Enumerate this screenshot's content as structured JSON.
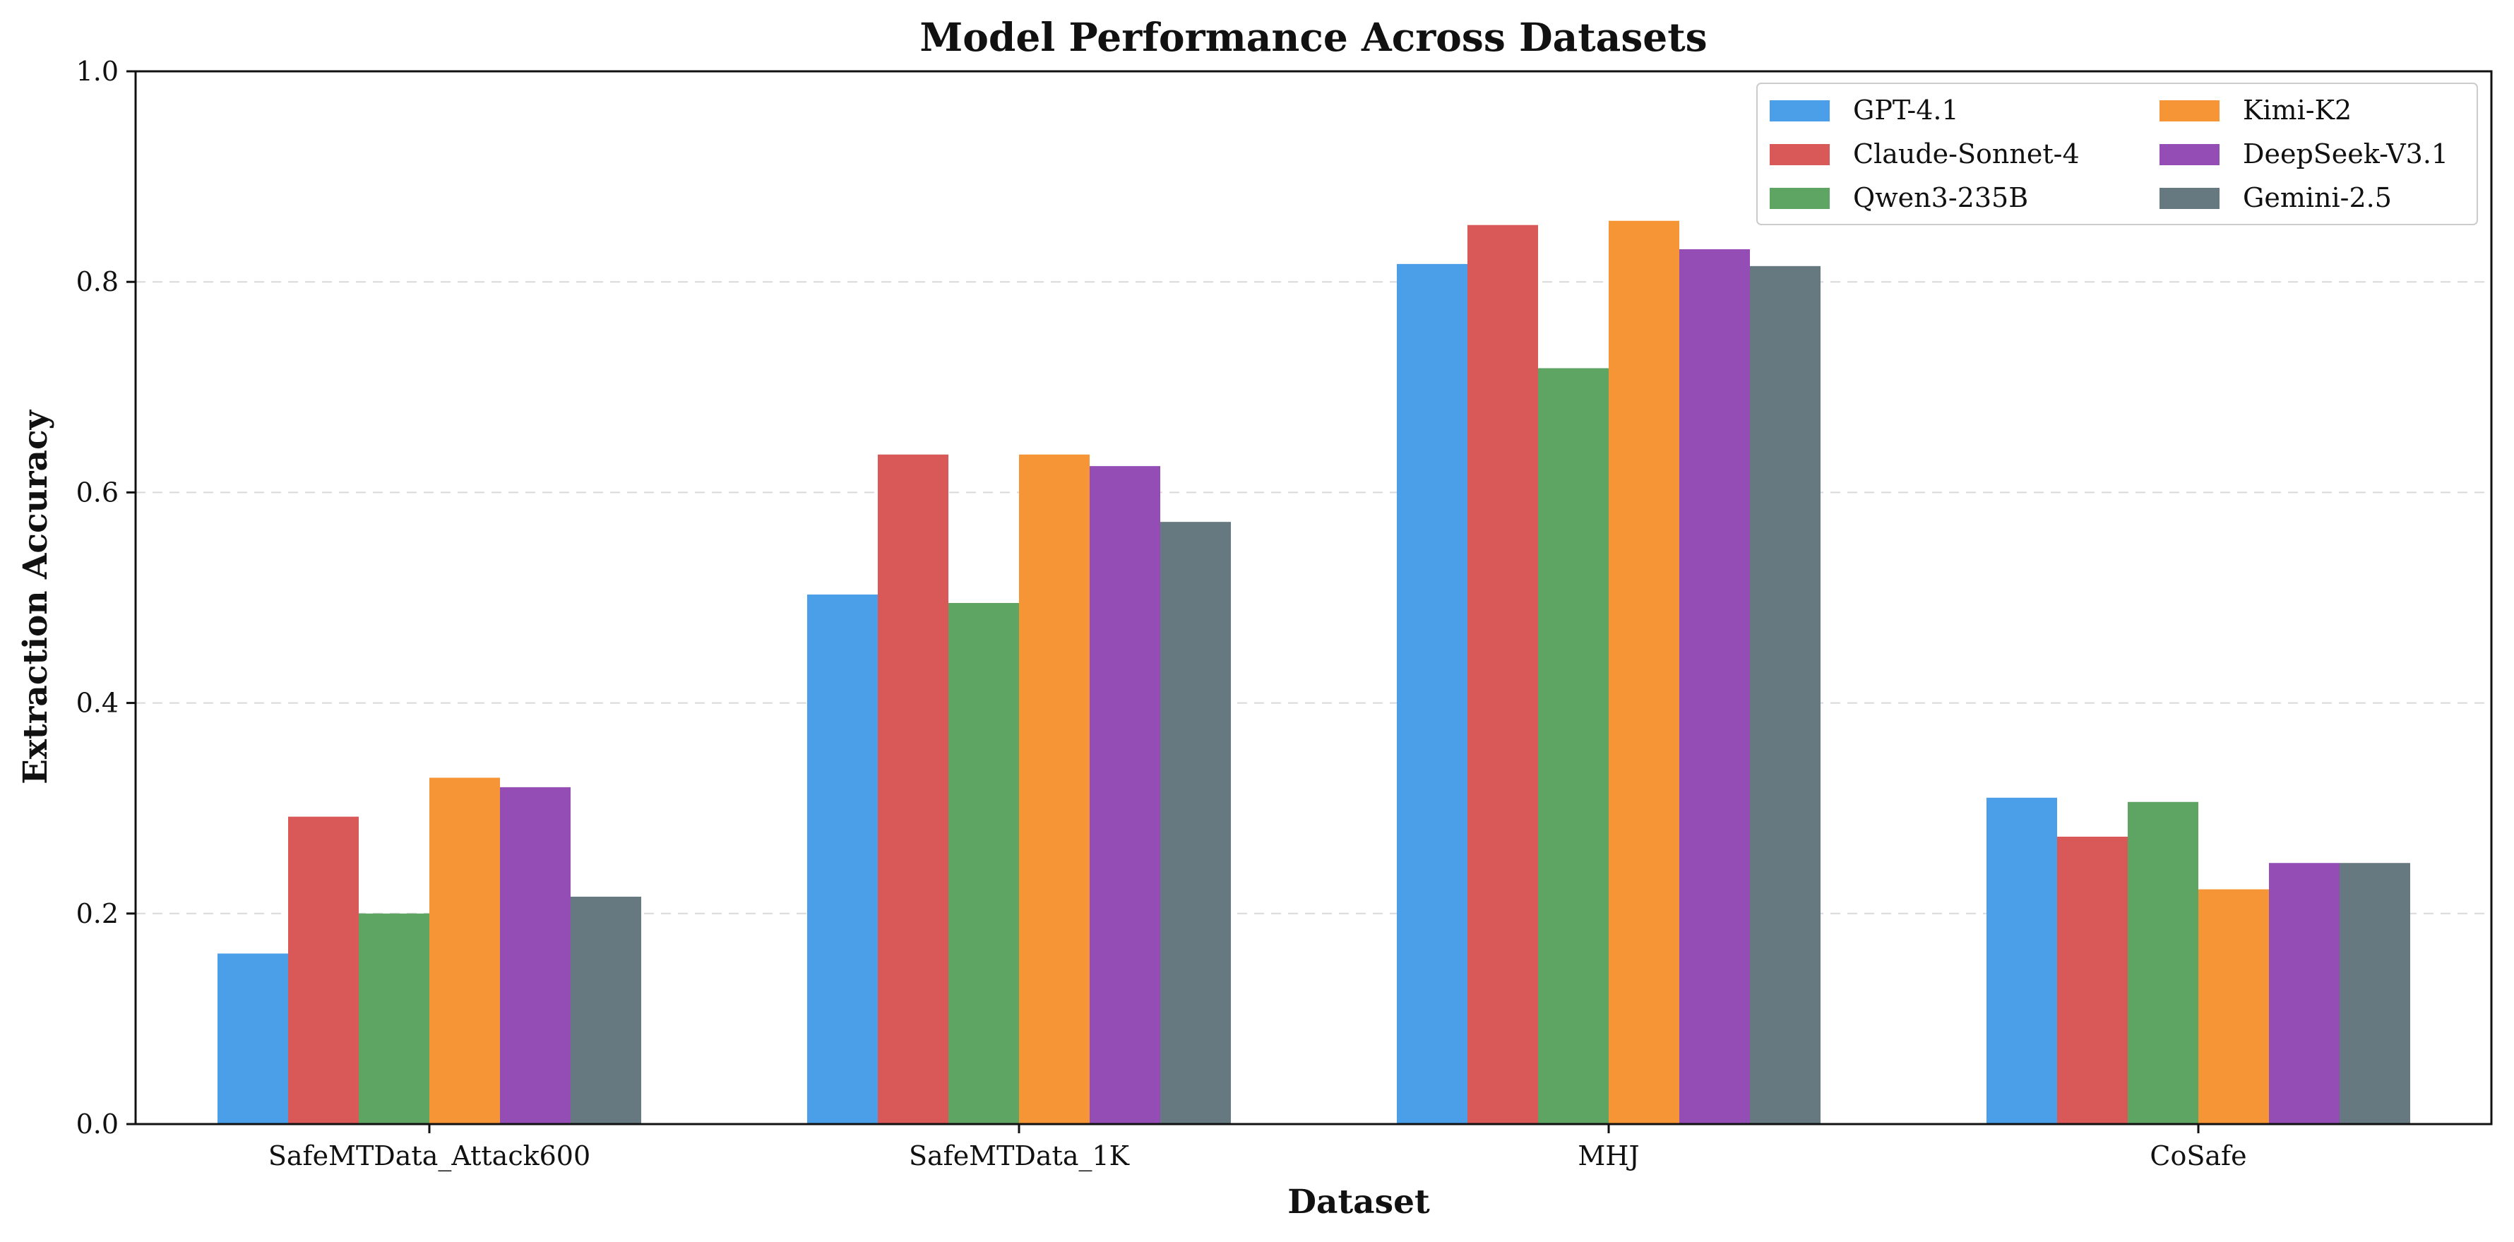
{
  "chart_data": {
    "type": "bar",
    "title": "Model Performance Across Datasets",
    "xlabel": "Dataset",
    "ylabel": "Extraction Accuracy",
    "ylim": [
      0,
      1.0
    ],
    "yticks": [
      "0.0",
      "0.2",
      "0.4",
      "0.6",
      "0.8",
      "1.0"
    ],
    "grid": "horizontal dashed",
    "legend_position": "top-right",
    "categories": [
      "SafeMTData_Attack600",
      "SafeMTData_1K",
      "MHJ",
      "CoSafe"
    ],
    "series": [
      {
        "name": "GPT-4.1",
        "color": "#4A9FE8",
        "values": [
          0.162,
          0.503,
          0.817,
          0.31
        ]
      },
      {
        "name": "Claude-Sonnet-4",
        "color": "#D95959",
        "values": [
          0.292,
          0.636,
          0.854,
          0.273
        ]
      },
      {
        "name": "Qwen3-235B",
        "color": "#5EA463",
        "values": [
          0.2,
          0.495,
          0.718,
          0.306
        ]
      },
      {
        "name": "Kimi-K2",
        "color": "#F59535",
        "values": [
          0.329,
          0.636,
          0.858,
          0.223
        ]
      },
      {
        "name": "DeepSeek-V3.1",
        "color": "#934DB4",
        "values": [
          0.32,
          0.625,
          0.831,
          0.248
        ]
      },
      {
        "name": "Gemini-2.5",
        "color": "#677980",
        "values": [
          0.216,
          0.572,
          0.815,
          0.248
        ]
      }
    ]
  }
}
